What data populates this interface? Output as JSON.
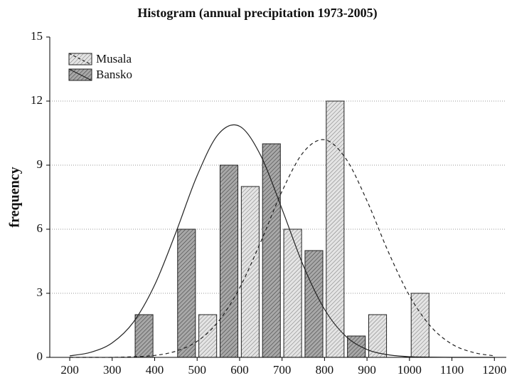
{
  "chart_data": {
    "type": "histogram",
    "title": "Histogram (annual precipitation 1973-2005)",
    "y_label": "frequency",
    "bins": [
      350,
      450,
      550,
      650,
      750,
      850,
      950,
      1050
    ],
    "series": [
      {
        "name": "Musala",
        "color": "#dcdcdc",
        "line_dash": "dashed",
        "values": [
          0,
          2,
          8,
          6,
          12,
          2,
          3
        ],
        "fit": [
          0,
          0,
          0,
          0.03,
          0.09,
          0.29,
          0.75,
          1.68,
          3.25,
          5.42,
          7.78,
          9.6,
          10.19,
          9.31,
          7.33,
          4.95,
          2.89,
          1.45,
          0.62,
          0.23,
          0.07
        ]
      },
      {
        "name": "Bansko",
        "color": "#9a9a9a",
        "line_dash": "solid",
        "values": [
          2,
          6,
          9,
          10,
          5,
          1,
          0
        ],
        "fit": [
          0.07,
          0.24,
          0.68,
          1.65,
          3.39,
          5.85,
          8.51,
          10.45,
          10.82,
          9.44,
          6.94,
          4.3,
          2.25,
          0.99,
          0.37,
          0.12,
          0.03,
          0.01,
          0,
          0,
          0
        ]
      }
    ],
    "fit_x": [
      200,
      250,
      300,
      350,
      400,
      450,
      500,
      550,
      600,
      650,
      700,
      750,
      800,
      850,
      900,
      950,
      1000,
      1050,
      1100,
      1150,
      1200
    ],
    "xlim": [
      153,
      1228
    ],
    "ylim": [
      0,
      15
    ],
    "xticks": [
      200,
      300,
      400,
      500,
      600,
      700,
      800,
      900,
      1000,
      1100,
      1200
    ],
    "yticks": [
      0,
      3,
      6,
      9,
      12,
      15
    ],
    "grid": true,
    "legend": "upper left"
  }
}
